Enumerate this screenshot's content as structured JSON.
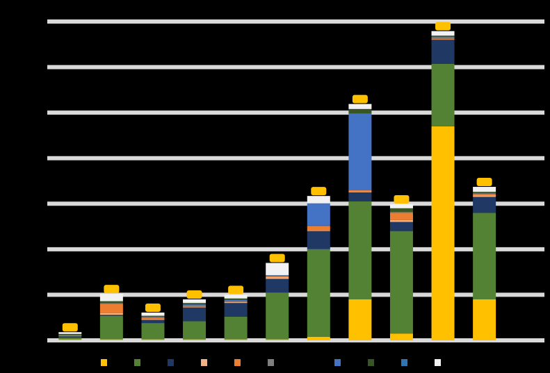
{
  "chart_data": {
    "type": "bar",
    "stacked": true,
    "title": "",
    "xlabel": "",
    "ylabel": "",
    "ylim": [
      0,
      70
    ],
    "grid": true,
    "legend_placement": "bottom",
    "background": "#000000",
    "gridline_color": "#d9d9d9",
    "categories": [
      "",
      "",
      "",
      "",
      "",
      "",
      "",
      "",
      "",
      "",
      "",
      ""
    ],
    "series": [
      {
        "color": "#ffc000",
        "values": [
          0.2,
          0.2,
          0.2,
          0.2,
          0.2,
          0.2,
          0.8,
          9.0,
          1.5,
          47.0,
          9.0,
          0
        ]
      },
      {
        "color": "#548235",
        "values": [
          0.4,
          5.2,
          3.6,
          4.0,
          5.0,
          10.3,
          19.2,
          21.5,
          22.5,
          13.7,
          19.0,
          0
        ]
      },
      {
        "color": "#203864",
        "values": [
          0.3,
          0.2,
          0.7,
          3.0,
          3.0,
          3.0,
          4.0,
          2.0,
          2.0,
          5.3,
          3.5,
          0
        ]
      },
      {
        "color": "#f4b183",
        "values": [
          0.1,
          0.4,
          0.2,
          0.1,
          0.2,
          0.4,
          0.2,
          0.2,
          0.4,
          0.1,
          0.3,
          0
        ]
      },
      {
        "color": "#ed7d31",
        "values": [
          0.1,
          2.0,
          0.2,
          0.1,
          0.1,
          0.2,
          0.9,
          0.3,
          1.6,
          0.1,
          0.3,
          0
        ]
      },
      {
        "color": "#7f7f7f",
        "values": [
          0,
          0.2,
          0.3,
          0.3,
          0.2,
          0.1,
          0.1,
          0,
          0.2,
          0.4,
          0.2,
          0
        ]
      },
      {
        "color": "#000000",
        "values": [
          0,
          0,
          0,
          0,
          0,
          0,
          0,
          0,
          0,
          0,
          0,
          0
        ]
      },
      {
        "color": "#4472c4",
        "values": [
          0,
          0,
          0,
          0.2,
          0.2,
          0,
          4.9,
          16.8,
          0,
          0.1,
          0,
          0
        ]
      },
      {
        "color": "#375623",
        "values": [
          0.3,
          0.4,
          0.2,
          0.3,
          0.3,
          0,
          0,
          1.0,
          0.8,
          0.2,
          0.3,
          0
        ]
      },
      {
        "color": "#2e75b6",
        "values": [
          0,
          0,
          0,
          0,
          0,
          0.1,
          0,
          0,
          0,
          0,
          0,
          0
        ]
      },
      {
        "color": "#f2f2f2",
        "values": [
          0.4,
          1.6,
          0.7,
          0.8,
          0.8,
          2.7,
          1.6,
          1.1,
          0.9,
          1.0,
          1.1,
          0
        ]
      }
    ],
    "totals_color": "#ffc000",
    "legend": [
      {
        "color": "#ffc000"
      },
      {
        "color": "#548235"
      },
      {
        "color": "#203864"
      },
      {
        "color": "#f4b183"
      },
      {
        "color": "#ed7d31"
      },
      {
        "color": "#7f7f7f"
      },
      {
        "color": "#000000"
      },
      {
        "color": "#4472c4"
      },
      {
        "color": "#375623"
      },
      {
        "color": "#2e75b6"
      },
      {
        "color": "#f2f2f2"
      }
    ]
  }
}
